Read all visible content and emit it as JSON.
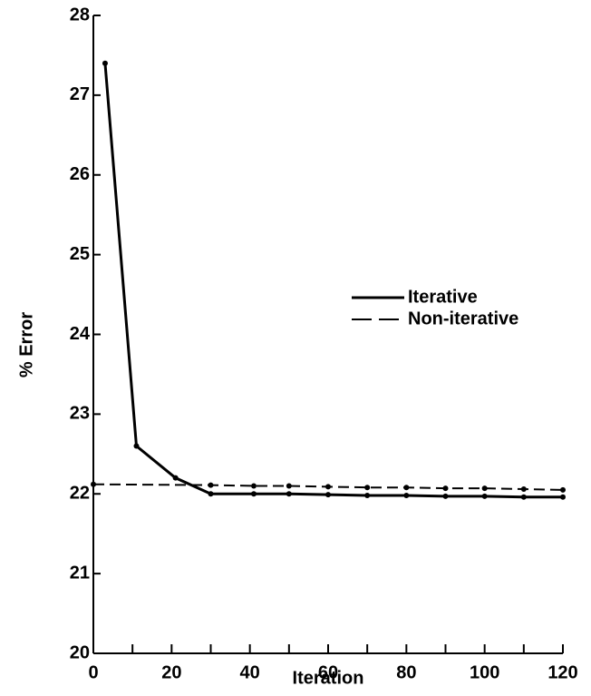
{
  "chart_data": {
    "type": "line",
    "x_label": "Iteration",
    "y_label": "% Error",
    "xlim": [
      0,
      120
    ],
    "xticks": [
      0,
      20,
      40,
      60,
      80,
      100,
      120
    ],
    "xminorticks": [
      10,
      30,
      50,
      70,
      90,
      110
    ],
    "ylim": [
      20,
      28
    ],
    "yticks": [
      20,
      21,
      22,
      23,
      24,
      25,
      26,
      27,
      28
    ],
    "legend": "right",
    "series": [
      {
        "name": "Iterative",
        "color": "#000000",
        "dash": false,
        "x": [
          3,
          11,
          21,
          30,
          41,
          50,
          60,
          70,
          80,
          90,
          100,
          110,
          120
        ],
        "values": [
          27.4,
          22.6,
          22.2,
          22.0,
          22.0,
          22.0,
          21.99,
          21.98,
          21.98,
          21.97,
          21.97,
          21.96,
          21.96
        ]
      },
      {
        "name": "Non-iterative",
        "color": "#000000",
        "dash": true,
        "x": [
          0,
          30,
          41,
          50,
          60,
          70,
          80,
          90,
          100,
          110,
          120
        ],
        "values": [
          22.12,
          22.11,
          22.1,
          22.1,
          22.09,
          22.08,
          22.08,
          22.07,
          22.07,
          22.06,
          22.05
        ]
      }
    ]
  }
}
